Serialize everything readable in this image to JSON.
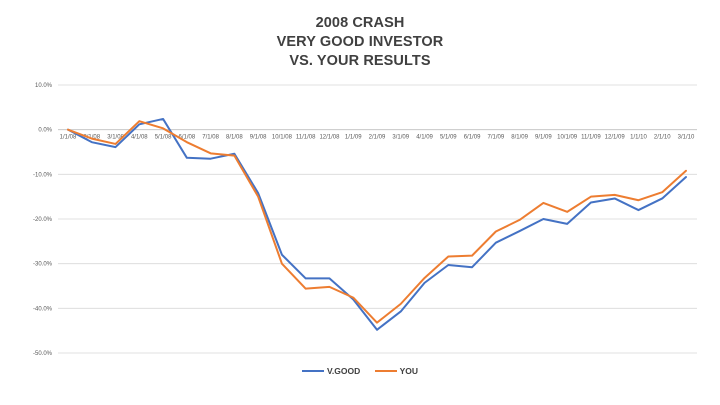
{
  "chart_data": {
    "type": "line",
    "title": [
      "2008 CRASH",
      "VERY GOOD INVESTOR",
      "VS. YOUR RESULTS"
    ],
    "xlabel": "",
    "ylabel": "",
    "ylim": [
      -50,
      10
    ],
    "yticks": [
      10,
      0,
      -10,
      -20,
      -30,
      -40,
      -50
    ],
    "ytick_labels": [
      "10.0%",
      "0.0%",
      "-10.0%",
      "-20.0%",
      "-30.0%",
      "-40.0%",
      "-50.0%"
    ],
    "grid": true,
    "legend_position": "bottom",
    "categories": [
      "1/1/08",
      "2/1/08",
      "3/1/08",
      "4/1/08",
      "5/1/08",
      "6/1/08",
      "7/1/08",
      "8/1/08",
      "9/1/08",
      "10/1/08",
      "11/1/08",
      "12/1/08",
      "1/1/09",
      "2/1/09",
      "3/1/09",
      "4/1/09",
      "5/1/09",
      "6/1/09",
      "7/1/09",
      "8/1/09",
      "9/1/09",
      "10/1/09",
      "11/1/09",
      "12/1/09",
      "1/1/10",
      "2/1/10",
      "3/1/10"
    ],
    "series": [
      {
        "name": "V.GOOD",
        "color": "#4472c4",
        "values": [
          0,
          -2.8,
          -3.9,
          1.2,
          2.4,
          -6.3,
          -6.5,
          -5.4,
          -14.2,
          -28.0,
          -33.3,
          -33.3,
          -38.0,
          -44.8,
          -40.7,
          -34.3,
          -30.3,
          -30.8,
          -25.3,
          -22.7,
          -20.0,
          -21.1,
          -16.3,
          -15.4,
          -18.0,
          -15.4,
          -10.6
        ]
      },
      {
        "name": "YOU",
        "color": "#ed7d31",
        "values": [
          0,
          -2.0,
          -3.2,
          1.9,
          0.3,
          -2.8,
          -5.3,
          -5.8,
          -15.0,
          -30.0,
          -35.6,
          -35.2,
          -37.6,
          -43.2,
          -39.0,
          -33.2,
          -28.4,
          -28.2,
          -22.8,
          -20.2,
          -16.4,
          -18.4,
          -15.0,
          -14.6,
          -15.8,
          -14.0,
          -9.2
        ]
      }
    ]
  }
}
